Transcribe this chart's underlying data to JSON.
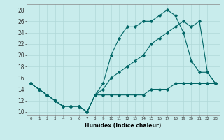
{
  "xlabel": "Humidex (Indice chaleur)",
  "background_color": "#c8ecec",
  "grid_color": "#b0d8d8",
  "line_color": "#006666",
  "xlim": [
    -0.5,
    23.5
  ],
  "ylim": [
    9.5,
    29.0
  ],
  "xticks": [
    0,
    1,
    2,
    3,
    4,
    5,
    6,
    7,
    8,
    9,
    10,
    11,
    12,
    13,
    14,
    15,
    16,
    17,
    18,
    19,
    20,
    21,
    22,
    23
  ],
  "yticks": [
    10,
    12,
    14,
    16,
    18,
    20,
    22,
    24,
    26,
    28
  ],
  "line1_x": [
    0,
    1,
    2,
    3,
    4,
    5,
    6,
    7,
    8,
    9,
    10,
    11,
    12,
    13,
    14,
    15,
    16,
    17,
    18,
    19,
    20,
    21,
    22,
    23
  ],
  "line1_y": [
    15,
    14,
    13,
    12,
    11,
    11,
    11,
    10,
    13,
    13,
    13,
    13,
    13,
    13,
    13,
    14,
    14,
    14,
    15,
    15,
    15,
    15,
    15,
    15
  ],
  "line2_x": [
    0,
    1,
    2,
    3,
    4,
    5,
    6,
    7,
    8,
    9,
    10,
    11,
    12,
    13,
    14,
    15,
    16,
    17,
    18,
    19,
    20,
    21,
    22,
    23
  ],
  "line2_y": [
    15,
    14,
    13,
    12,
    11,
    11,
    11,
    10,
    13,
    14,
    16,
    17,
    18,
    19,
    20,
    22,
    23,
    24,
    25,
    26,
    25,
    26,
    17,
    15
  ],
  "line3_x": [
    0,
    1,
    2,
    3,
    4,
    5,
    6,
    7,
    8,
    9,
    10,
    11,
    12,
    13,
    14,
    15,
    16,
    17,
    18,
    19,
    20,
    21,
    22,
    23
  ],
  "line3_y": [
    15,
    14,
    13,
    12,
    11,
    11,
    11,
    10,
    13,
    15,
    20,
    23,
    25,
    25,
    26,
    26,
    27,
    28,
    27,
    24,
    19,
    17,
    17,
    15
  ]
}
